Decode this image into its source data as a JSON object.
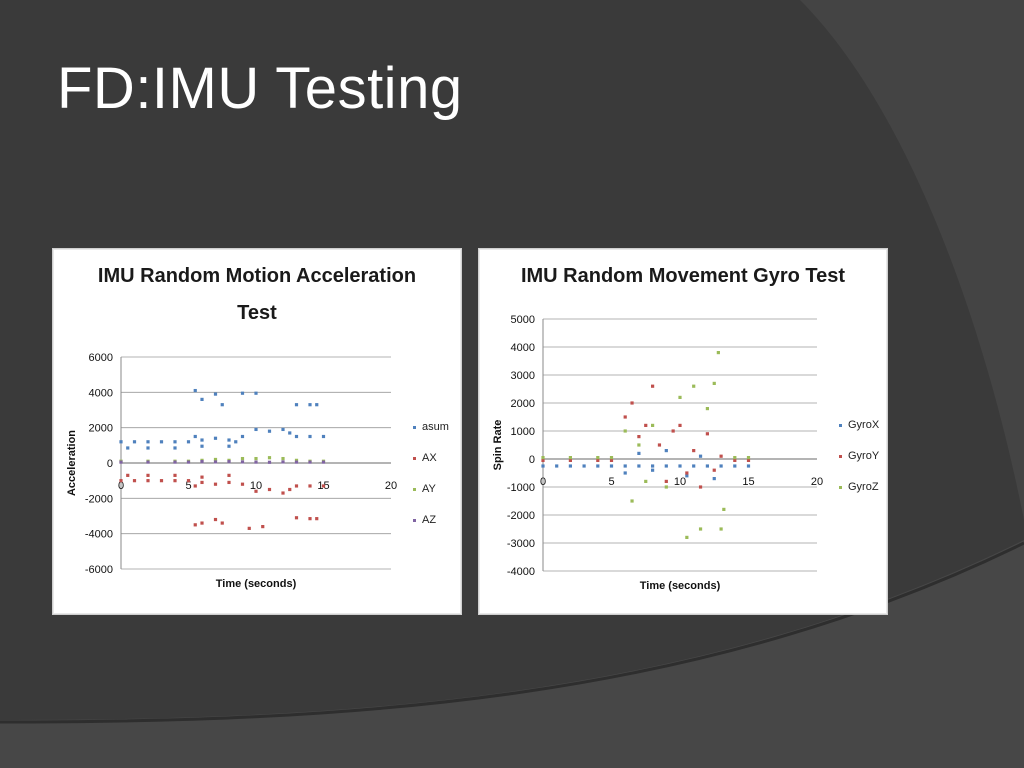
{
  "slide": {
    "title": "FD:IMU Testing"
  },
  "theme": {
    "background": "#3a3a3a",
    "swoosh": "#4a4a4a",
    "title_color": "#ffffff"
  },
  "chart_data": [
    {
      "type": "scatter",
      "title_lines": [
        "IMU Random Motion Acceleration",
        "Test"
      ],
      "xlabel": "Time (seconds)",
      "ylabel": "Acceleration",
      "xlim": [
        0,
        20
      ],
      "ylim": [
        -6000,
        6000
      ],
      "x_ticks": [
        0,
        5,
        10,
        15,
        20
      ],
      "y_ticks": [
        6000,
        4000,
        2000,
        0,
        -2000,
        -4000,
        -6000
      ],
      "grid": true,
      "legend_position": "right",
      "series": [
        {
          "name": "asum",
          "color": "#4f81bd",
          "points": [
            [
              0,
              1200
            ],
            [
              1,
              1200
            ],
            [
              2,
              1200
            ],
            [
              3,
              1200
            ],
            [
              4,
              1200
            ],
            [
              5,
              1200
            ],
            [
              5.5,
              1500
            ],
            [
              6,
              1300
            ],
            [
              7,
              1400
            ],
            [
              8,
              1300
            ],
            [
              8.5,
              1200
            ],
            [
              9,
              1500
            ],
            [
              10,
              1900
            ],
            [
              11,
              1800
            ],
            [
              12,
              1900
            ],
            [
              12.5,
              1700
            ],
            [
              13,
              1500
            ],
            [
              14,
              1500
            ],
            [
              15,
              1500
            ],
            [
              0.5,
              850
            ],
            [
              2,
              850
            ],
            [
              4,
              850
            ],
            [
              6,
              950
            ],
            [
              8,
              950
            ],
            [
              5.5,
              4100
            ],
            [
              6,
              3600
            ],
            [
              7,
              3900
            ],
            [
              7.5,
              3300
            ],
            [
              9,
              3950
            ],
            [
              10,
              3950
            ],
            [
              13,
              3300
            ],
            [
              14,
              3300
            ],
            [
              14.5,
              3300
            ]
          ]
        },
        {
          "name": "AX",
          "color": "#c0504d",
          "points": [
            [
              0,
              -1000
            ],
            [
              1,
              -1000
            ],
            [
              2,
              -1000
            ],
            [
              3,
              -1000
            ],
            [
              4,
              -1000
            ],
            [
              5,
              -1000
            ],
            [
              5.5,
              -1300
            ],
            [
              6,
              -1100
            ],
            [
              7,
              -1200
            ],
            [
              8,
              -1100
            ],
            [
              9,
              -1200
            ],
            [
              10,
              -1600
            ],
            [
              11,
              -1500
            ],
            [
              12,
              -1700
            ],
            [
              12.5,
              -1500
            ],
            [
              13,
              -1300
            ],
            [
              14,
              -1300
            ],
            [
              15,
              -1300
            ],
            [
              0.5,
              -700
            ],
            [
              2,
              -700
            ],
            [
              4,
              -700
            ],
            [
              6,
              -800
            ],
            [
              8,
              -700
            ],
            [
              5.5,
              -3500
            ],
            [
              6,
              -3400
            ],
            [
              7,
              -3200
            ],
            [
              7.5,
              -3400
            ],
            [
              9.5,
              -3700
            ],
            [
              10.5,
              -3600
            ],
            [
              13,
              -3100
            ],
            [
              14,
              -3150
            ],
            [
              14.5,
              -3150
            ]
          ]
        },
        {
          "name": "AY",
          "color": "#9bbb59",
          "points": [
            [
              0,
              100
            ],
            [
              2,
              100
            ],
            [
              4,
              100
            ],
            [
              5,
              100
            ],
            [
              6,
              150
            ],
            [
              7,
              200
            ],
            [
              8,
              150
            ],
            [
              9,
              250
            ],
            [
              10,
              250
            ],
            [
              11,
              300
            ],
            [
              12,
              250
            ],
            [
              13,
              150
            ],
            [
              14,
              100
            ],
            [
              15,
              100
            ]
          ]
        },
        {
          "name": "AZ",
          "color": "#8064a2",
          "points": [
            [
              0,
              50
            ],
            [
              2,
              50
            ],
            [
              4,
              50
            ],
            [
              5,
              50
            ],
            [
              6,
              80
            ],
            [
              7,
              60
            ],
            [
              8,
              80
            ],
            [
              9,
              60
            ],
            [
              10,
              50
            ],
            [
              11,
              40
            ],
            [
              12,
              60
            ],
            [
              13,
              50
            ],
            [
              14,
              50
            ],
            [
              15,
              50
            ]
          ]
        }
      ]
    },
    {
      "type": "scatter",
      "title_lines": [
        "IMU Random Movement Gyro Test"
      ],
      "xlabel": "Time (seconds)",
      "ylabel": "Spin Rate",
      "xlim": [
        0,
        20
      ],
      "ylim": [
        -4000,
        5000
      ],
      "x_ticks": [
        0,
        5,
        10,
        15,
        20
      ],
      "y_ticks": [
        5000,
        4000,
        3000,
        2000,
        1000,
        0,
        -1000,
        -2000,
        -3000,
        -4000
      ],
      "grid": true,
      "legend_position": "right",
      "series": [
        {
          "name": "GyroX",
          "color": "#4f81bd",
          "points": [
            [
              0,
              -250
            ],
            [
              1,
              -250
            ],
            [
              2,
              -250
            ],
            [
              3,
              -250
            ],
            [
              4,
              -250
            ],
            [
              5,
              -250
            ],
            [
              6,
              -250
            ],
            [
              7,
              -250
            ],
            [
              8,
              -250
            ],
            [
              9,
              -250
            ],
            [
              10,
              -250
            ],
            [
              11,
              -250
            ],
            [
              12,
              -250
            ],
            [
              13,
              -250
            ],
            [
              14,
              -250
            ],
            [
              15,
              -250
            ],
            [
              6,
              -500
            ],
            [
              7,
              200
            ],
            [
              8,
              -400
            ],
            [
              9,
              300
            ],
            [
              10.5,
              -600
            ],
            [
              11.5,
              100
            ],
            [
              12.5,
              -700
            ]
          ]
        },
        {
          "name": "GyroY",
          "color": "#c0504d",
          "points": [
            [
              0,
              -50
            ],
            [
              2,
              -50
            ],
            [
              4,
              -50
            ],
            [
              5,
              -50
            ],
            [
              6,
              1500
            ],
            [
              6.5,
              2000
            ],
            [
              7,
              800
            ],
            [
              7.5,
              1200
            ],
            [
              8,
              2600
            ],
            [
              8.5,
              500
            ],
            [
              9,
              -800
            ],
            [
              9.5,
              1000
            ],
            [
              10,
              1200
            ],
            [
              10.5,
              -500
            ],
            [
              11,
              300
            ],
            [
              11.5,
              -1000
            ],
            [
              12,
              900
            ],
            [
              12.5,
              -400
            ],
            [
              13,
              100
            ],
            [
              14,
              -50
            ],
            [
              15,
              -50
            ]
          ]
        },
        {
          "name": "GyroZ",
          "color": "#9bbb59",
          "points": [
            [
              0,
              50
            ],
            [
              2,
              50
            ],
            [
              4,
              50
            ],
            [
              5,
              50
            ],
            [
              6,
              1000
            ],
            [
              6.5,
              -1500
            ],
            [
              7,
              500
            ],
            [
              7.5,
              -800
            ],
            [
              8,
              1200
            ],
            [
              9,
              -1000
            ],
            [
              10,
              2200
            ],
            [
              10.5,
              -2800
            ],
            [
              11,
              2600
            ],
            [
              11.5,
              -2500
            ],
            [
              12,
              1800
            ],
            [
              12.5,
              2700
            ],
            [
              13,
              -2500
            ],
            [
              12.8,
              3800
            ],
            [
              13.2,
              -1800
            ],
            [
              14,
              50
            ],
            [
              15,
              50
            ]
          ]
        }
      ]
    }
  ]
}
